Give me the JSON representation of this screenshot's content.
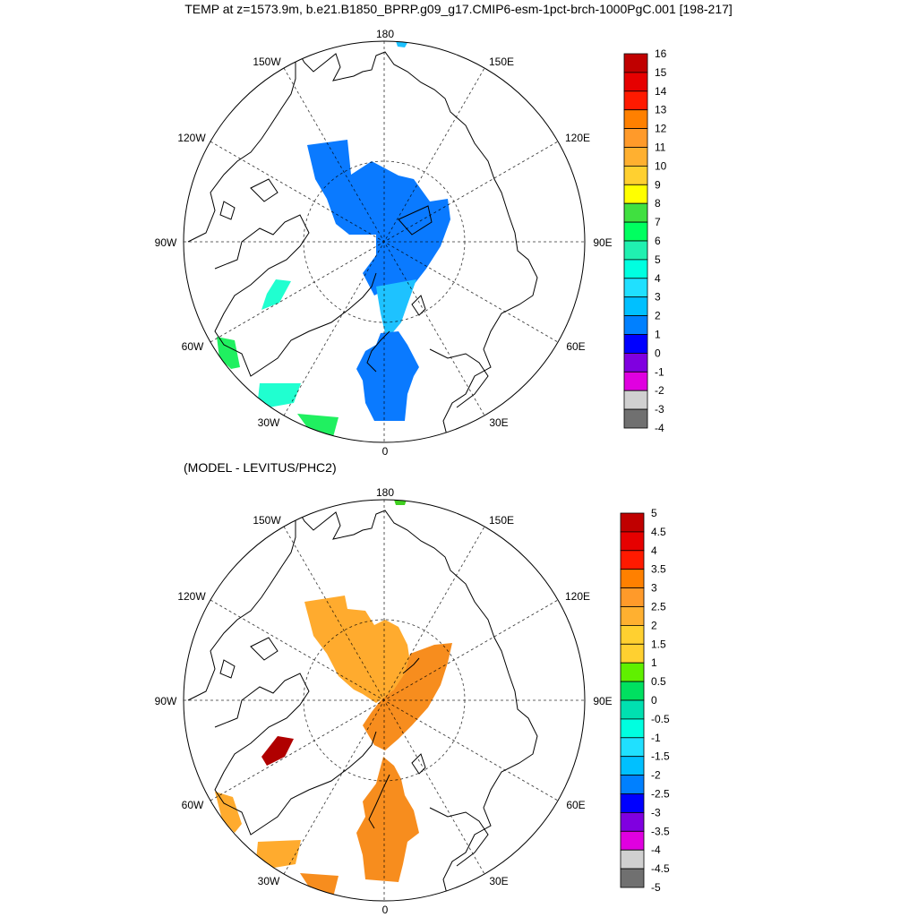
{
  "title": "TEMP at z=1573.9m, b.e21.B1850_BPRP.g09_g17.CMIP6-esm-1pct-brch-1000PgC.001 [198-217]",
  "subtitle": "(MODEL - LEVITUS/PHC2)",
  "longitude_labels": {
    "lon_180": "180",
    "lon_150W": "150W",
    "lon_150E": "150E",
    "lon_120W": "120W",
    "lon_120E": "120E",
    "lon_90W": "90W",
    "lon_90E": "90E",
    "lon_60W": "60W",
    "lon_60E": "60E",
    "lon_30W": "30W",
    "lon_30E": "30E",
    "lon_0": "0"
  },
  "top_colorbar": {
    "labels": [
      "16",
      "15",
      "14",
      "13",
      "12",
      "11",
      "10",
      "9",
      "8",
      "7",
      "6",
      "5",
      "4",
      "3",
      "2",
      "1",
      "0",
      "-1",
      "-2",
      "-3",
      "-4"
    ],
    "colors": [
      "#c00000",
      "#e60000",
      "#ff1a00",
      "#ff8000",
      "#ff9a2a",
      "#ffb030",
      "#ffd030",
      "#ffff00",
      "#40e040",
      "#00ff60",
      "#20f0b0",
      "#00ffe0",
      "#20e0ff",
      "#00c0ff",
      "#0080ff",
      "#0000ff",
      "#8000e0",
      "#e000e0",
      "#d0d0d0",
      "#707070"
    ]
  },
  "bottom_colorbar": {
    "labels": [
      "5",
      "4.5",
      "4",
      "3.5",
      "3",
      "2.5",
      "2",
      "1.5",
      "1",
      "0.5",
      "0",
      "-0.5",
      "-1",
      "-1.5",
      "-2",
      "-2.5",
      "-3",
      "-3.5",
      "-4",
      "-4.5",
      "-5"
    ],
    "colors": [
      "#c00000",
      "#e60000",
      "#ff1a00",
      "#ff8000",
      "#ff9a2a",
      "#ffb030",
      "#ffd030",
      "#ffd030",
      "#60f000",
      "#00e060",
      "#00e0b0",
      "#00ffe0",
      "#20e0ff",
      "#00c0ff",
      "#0080ff",
      "#0000ff",
      "#8000e0",
      "#e000e0",
      "#d0d0d0",
      "#707070"
    ]
  },
  "colors": {
    "top_main_field": "#0a7aff",
    "top_light_field": "#1ec2ff",
    "top_green": "#20f060",
    "top_aqua": "#20ffd0",
    "bottom_orange": "#ffab2e",
    "bottom_dark_orange": "#f78d1e",
    "bottom_dark_red": "#b00000",
    "bottom_green_patch": "#40d020"
  }
}
